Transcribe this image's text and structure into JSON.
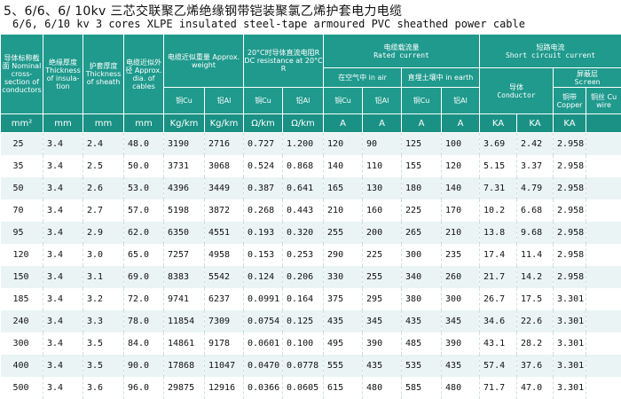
{
  "title": {
    "line1": "5、6/6、6/ 10kv 三芯交联聚乙烯绝缘钢带铠装聚氯乙烯护套电力电缆",
    "line2": "6/6, 6/10 kv 3 cores XLPE insulated steel-tape armoured PVC sheathed power cable"
  },
  "header": {
    "conductor_section": "导体标称截面 Nominal cross-section of conductors",
    "insulation": "绝缘厚度 Thickness of insula-tion",
    "sheath": "护套厚度 Thickness of sheath",
    "diameter": "电缆近似外径 Approx. dia. of cables",
    "weight_group": "电缆近似重量 Approx. weight",
    "dc_group": "20°C时导体直流电阻R DC resistance at 20°C R",
    "current_group_cn": "电缆载流量",
    "current_group_en": "Rated current",
    "in_air": "在空气中 in air",
    "in_earth": "直埋土壤中 in earth",
    "short_cn": "短路电流",
    "short_en": "Short circuit current",
    "conductor_cn": "导体",
    "conductor_en": "Conductor",
    "screen_cn": "屏蔽层",
    "screen_en": "Screen",
    "cu": "铜Cu",
    "al": "铝Al",
    "copper": "铜带 Copper",
    "cu_wire": "铜丝 Cu wire"
  },
  "units": [
    "mm²",
    "mm",
    "mm",
    "mm",
    "Kg/km",
    "Kg/km",
    "Ω/km",
    "Ω/km",
    "A",
    "A",
    "A",
    "A",
    "KA",
    "KA",
    "KA",
    ""
  ],
  "rows": [
    [
      "25",
      "3.4",
      "2.4",
      "48.0",
      "3190",
      "2716",
      "0.727",
      "1.200",
      "120",
      "90",
      "125",
      "100",
      "3.69",
      "2.42",
      "2.958",
      ""
    ],
    [
      "35",
      "3.4",
      "2.5",
      "50.0",
      "3731",
      "3068",
      "0.524",
      "0.868",
      "140",
      "110",
      "155",
      "120",
      "5.15",
      "3.37",
      "2.958",
      ""
    ],
    [
      "50",
      "3.4",
      "2.6",
      "53.0",
      "4396",
      "3449",
      "0.387",
      "0.641",
      "165",
      "130",
      "180",
      "140",
      "7.31",
      "4.79",
      "2.958",
      ""
    ],
    [
      "70",
      "3.4",
      "2.7",
      "57.0",
      "5198",
      "3872",
      "0.268",
      "0.443",
      "210",
      "160",
      "225",
      "170",
      "10.2",
      "6.68",
      "2.958",
      ""
    ],
    [
      "95",
      "3.4",
      "2.9",
      "62.0",
      "6350",
      "4551",
      "0.193",
      "0.320",
      "255",
      "200",
      "265",
      "210",
      "13.8",
      "9.68",
      "2.958",
      ""
    ],
    [
      "120",
      "3.4",
      "3.0",
      "65.0",
      "7257",
      "4958",
      "0.153",
      "0.253",
      "290",
      "225",
      "300",
      "235",
      "17.4",
      "11.4",
      "2.958",
      ""
    ],
    [
      "150",
      "3.4",
      "3.1",
      "69.0",
      "8383",
      "5542",
      "0.124",
      "0.206",
      "330",
      "255",
      "340",
      "260",
      "21.7",
      "14.2",
      "2.958",
      ""
    ],
    [
      "185",
      "3.4",
      "3.2",
      "72.0",
      "9741",
      "6237",
      "0.0991",
      "0.164",
      "375",
      "295",
      "380",
      "300",
      "26.7",
      "17.5",
      "3.301",
      ""
    ],
    [
      "240",
      "3.4",
      "3.3",
      "78.0",
      "11854",
      "7309",
      "0.0754",
      "0.125",
      "435",
      "345",
      "435",
      "345",
      "34.6",
      "22.6",
      "3.301",
      ""
    ],
    [
      "300",
      "3.4",
      "3.5",
      "84.0",
      "14861",
      "9178",
      "0.0601",
      "0.100",
      "495",
      "390",
      "485",
      "390",
      "43.1",
      "28.2",
      "3.301",
      ""
    ],
    [
      "400",
      "3.4",
      "3.5",
      "90.0",
      "17868",
      "11047",
      "0.0470",
      "0.0778",
      "555",
      "435",
      "535",
      "435",
      "57.4",
      "37.6",
      "3.301",
      ""
    ],
    [
      "500",
      "3.4",
      "3.6",
      "96.0",
      "29875",
      "12916",
      "0.0366",
      "0.0605",
      "615",
      "480",
      "585",
      "480",
      "71.7",
      "47.0",
      "3.301",
      ""
    ]
  ],
  "colors": {
    "header_bg": "#1f9a8d",
    "row_stripe": "#eaf4f4"
  }
}
